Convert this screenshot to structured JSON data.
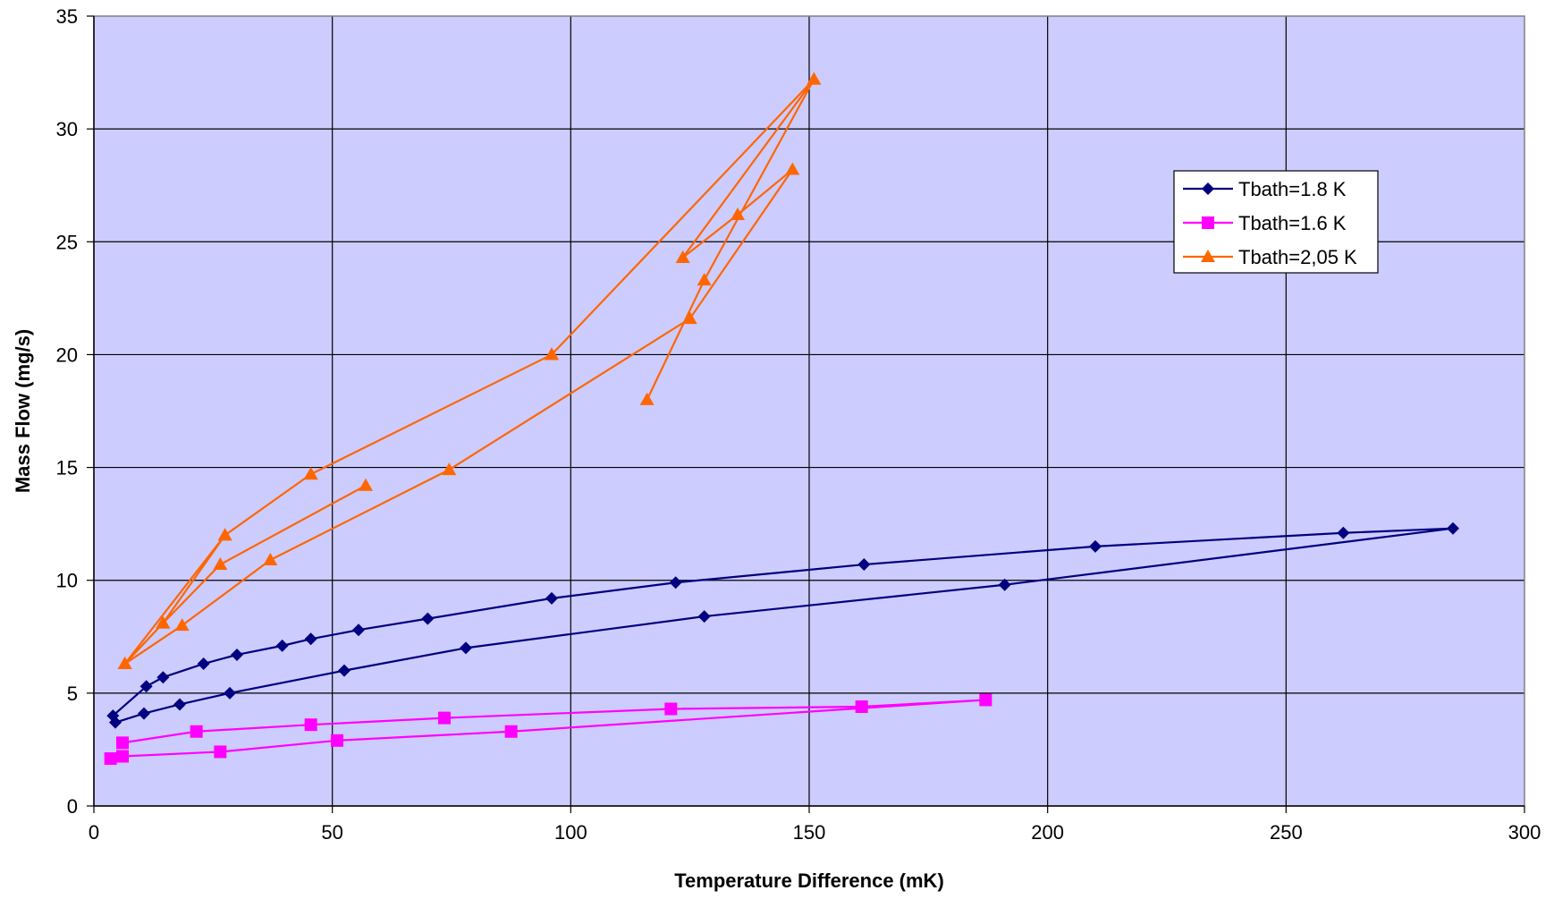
{
  "chart_data": {
    "type": "line",
    "title": "",
    "xlabel": "Temperature Difference (mK)",
    "ylabel": "Mass Flow (mg/s)",
    "xlim": [
      0,
      300
    ],
    "ylim": [
      0,
      35
    ],
    "xticks": [
      0,
      50,
      100,
      150,
      200,
      250,
      300
    ],
    "yticks": [
      0,
      5,
      10,
      15,
      20,
      25,
      30,
      35
    ],
    "grid": true,
    "legend_position": "top-right",
    "plot_background": "#ccccff",
    "series": [
      {
        "name": "Tbath=1.8 K",
        "color": "#000080",
        "marker": "diamond",
        "x": [
          4,
          11,
          14.5,
          23,
          30,
          39.5,
          45.5,
          55.5,
          70,
          96,
          122,
          161.5,
          210,
          262,
          285,
          191,
          128,
          78,
          52.5,
          28.5,
          18,
          10.5,
          4.5
        ],
        "y": [
          4.0,
          5.3,
          5.7,
          6.3,
          6.7,
          7.1,
          7.4,
          7.8,
          8.3,
          9.2,
          9.9,
          10.7,
          11.5,
          12.1,
          12.3,
          9.8,
          8.4,
          7.0,
          6.0,
          5.0,
          4.5,
          4.1,
          3.7
        ]
      },
      {
        "name": "Tbath=1.6 K",
        "color": "#ff00ff",
        "marker": "square",
        "x": [
          6,
          21.5,
          45.5,
          73.5,
          121,
          161,
          187,
          87.5,
          51,
          26.5,
          6,
          3.5
        ],
        "y": [
          2.8,
          3.3,
          3.6,
          3.9,
          4.3,
          4.4,
          4.7,
          3.3,
          2.9,
          2.4,
          2.2,
          2.1
        ]
      },
      {
        "name": "Tbath=2,05 K",
        "color": "#ff6600",
        "marker": "triangle",
        "x": [
          57,
          26.5,
          14.5,
          6.5,
          27.5,
          45.5,
          96,
          151,
          123.5,
          135,
          146.5,
          125,
          74.5,
          37,
          18.5,
          6.5,
          14.5,
          27.5,
          45.5,
          96,
          151,
          128,
          116
        ],
        "y": [
          14.2,
          10.7,
          8.1,
          6.3,
          12.0,
          14.7,
          20.0,
          32.2,
          24.3,
          26.2,
          28.2,
          21.6,
          14.9,
          10.9,
          8.0,
          6.3,
          8.1,
          12.0,
          14.7,
          20.0,
          32.2,
          23.3,
          18.0
        ]
      }
    ]
  }
}
